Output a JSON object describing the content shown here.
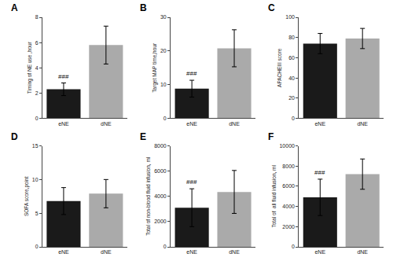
{
  "chart_data": [
    {
      "type": "bar",
      "title": "A",
      "ylabel": "Timing of NE use ,hour",
      "categories": [
        "eNE",
        "dNE"
      ],
      "values": [
        2.3,
        5.8
      ],
      "errors": [
        0.5,
        1.5
      ],
      "colors": [
        "#1a1a1a",
        "#aaaaaa"
      ],
      "ylim": [
        0,
        8
      ],
      "yticks": [
        0,
        2,
        4,
        6,
        8
      ],
      "grid": false,
      "annotations": [
        {
          "text": "###",
          "category": "eNE"
        }
      ]
    },
    {
      "type": "bar",
      "title": "B",
      "ylabel": "Target MAP time,hour",
      "categories": [
        "eNE",
        "dNE"
      ],
      "values": [
        8.8,
        20.8
      ],
      "errors": [
        2.5,
        5.5
      ],
      "colors": [
        "#1a1a1a",
        "#aaaaaa"
      ],
      "ylim": [
        0,
        30
      ],
      "yticks": [
        0,
        10,
        20,
        30
      ],
      "grid": false,
      "annotations": [
        {
          "text": "###",
          "category": "eNE"
        }
      ]
    },
    {
      "type": "bar",
      "title": "C",
      "ylabel": "APACHEIII score",
      "categories": [
        "eNE",
        "dNE"
      ],
      "values": [
        74.0,
        79.0
      ],
      "errors": [
        10.0,
        10.0
      ],
      "colors": [
        "#1a1a1a",
        "#aaaaaa"
      ],
      "ylim": [
        0,
        100
      ],
      "yticks": [
        0,
        20,
        40,
        60,
        80,
        100
      ],
      "grid": false
    },
    {
      "type": "bar",
      "title": "D",
      "ylabel": "SOFA score,point",
      "categories": [
        "eNE",
        "dNE"
      ],
      "values": [
        6.8,
        7.9
      ],
      "errors": [
        2.0,
        2.1
      ],
      "colors": [
        "#1a1a1a",
        "#aaaaaa"
      ],
      "ylim": [
        0,
        15
      ],
      "yticks": [
        0,
        5,
        10,
        15
      ],
      "grid": false
    },
    {
      "type": "bar",
      "title": "E",
      "ylabel": "Total of non-blood fluid infusion, ml",
      "categories": [
        "eNE",
        "dNE"
      ],
      "values": [
        3100,
        4350
      ],
      "errors": [
        1500,
        1700
      ],
      "colors": [
        "#1a1a1a",
        "#aaaaaa"
      ],
      "ylim": [
        0,
        8000
      ],
      "yticks": [
        0,
        2000,
        4000,
        6000,
        8000
      ],
      "grid": false,
      "annotations": [
        {
          "text": "###",
          "category": "eNE"
        }
      ]
    },
    {
      "type": "bar",
      "title": "F",
      "ylabel": "Total of  all fluid infusion, ml",
      "categories": [
        "eNE",
        "dNE"
      ],
      "values": [
        4900,
        7200
      ],
      "errors": [
        1800,
        1500
      ],
      "colors": [
        "#1a1a1a",
        "#aaaaaa"
      ],
      "ylim": [
        0,
        10000
      ],
      "yticks": [
        0,
        2000,
        4000,
        6000,
        8000,
        10000
      ],
      "grid": false,
      "annotations": [
        {
          "text": "###",
          "category": "eNE"
        }
      ]
    }
  ]
}
